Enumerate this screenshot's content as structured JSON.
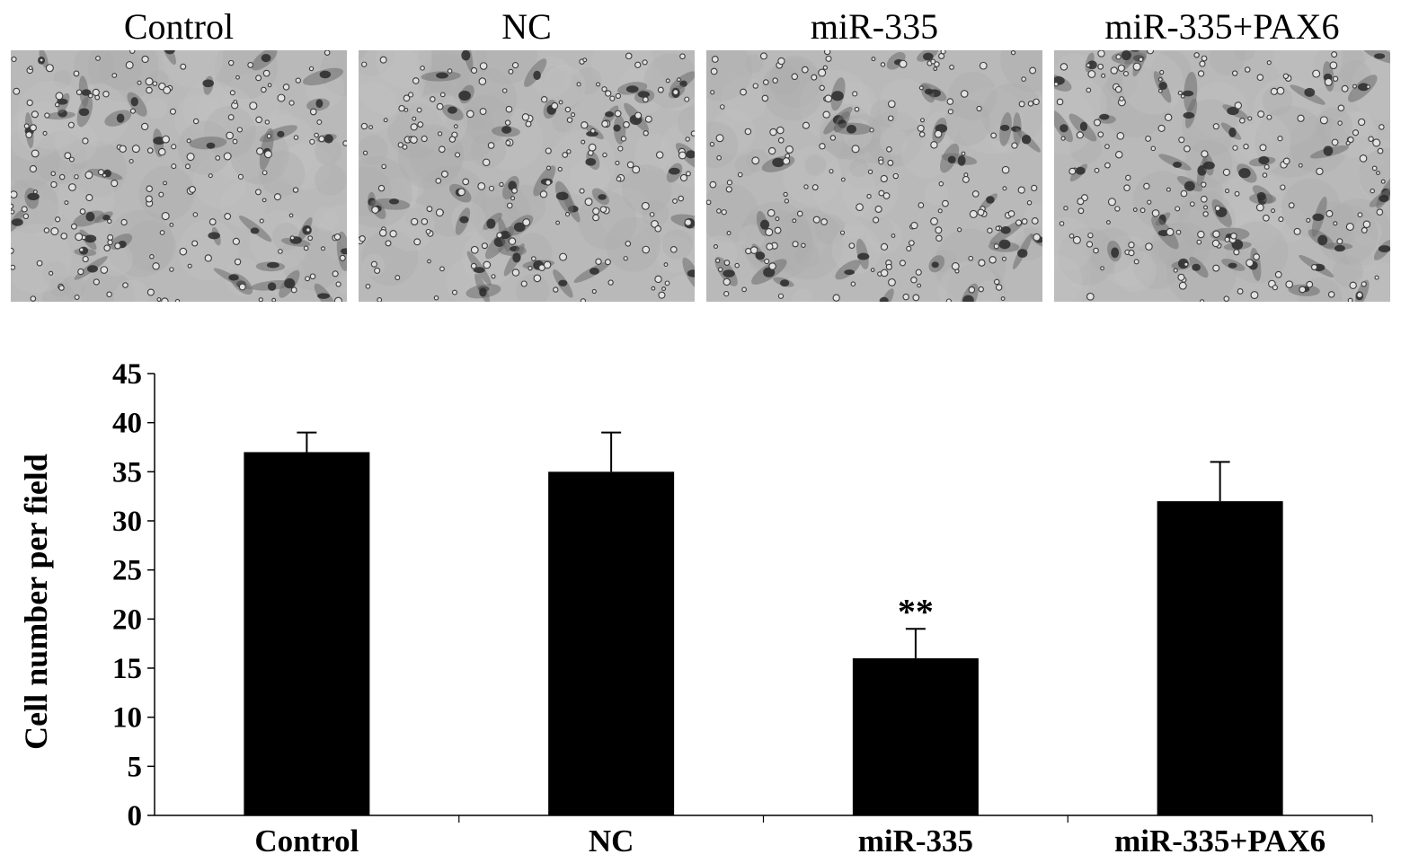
{
  "panels": [
    {
      "label": "Control"
    },
    {
      "label": "NC"
    },
    {
      "label": "miR-335"
    },
    {
      "label": "miR-335+PAX6"
    }
  ],
  "chart_data": {
    "type": "bar",
    "categories": [
      "Control",
      "NC",
      "miR-335",
      "miR-335+PAX6"
    ],
    "values": [
      37,
      35,
      16,
      32
    ],
    "error": [
      2,
      4,
      3,
      4
    ],
    "annotations": [
      "",
      "",
      "**",
      ""
    ],
    "ylabel": "Cell number per field",
    "xlabel": "",
    "ylim": [
      0,
      45
    ],
    "yticks": [
      0,
      5,
      10,
      15,
      20,
      25,
      30,
      35,
      40,
      45
    ],
    "bar_color": "#000000",
    "grid": false
  }
}
